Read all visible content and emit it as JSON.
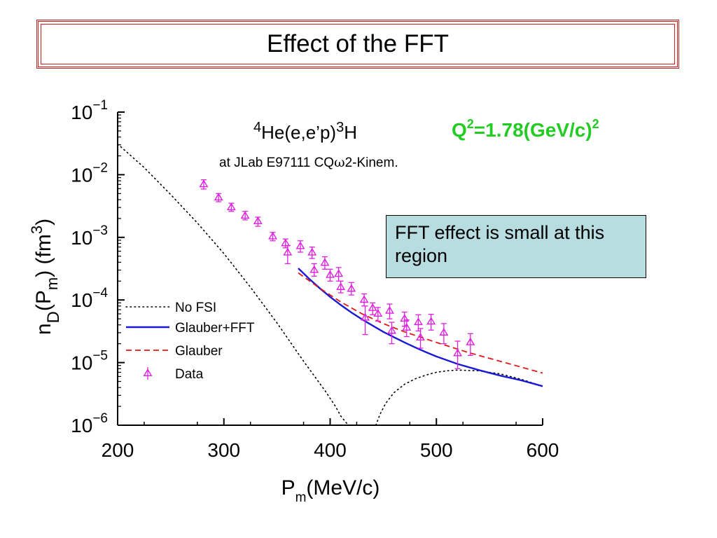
{
  "slide": {
    "title": "Effect of the FFT",
    "callout": "FFT effect is small at this region"
  },
  "chart_data": {
    "type": "scatter",
    "reaction": {
      "base": "He(e,e’p)",
      "pre_super": "4",
      "post_super": "3",
      "post": "H"
    },
    "subtitle_pre": "at JLab E97111 CQ",
    "subtitle_greek": "ω",
    "subtitle_post": "2-Kinem.",
    "q2_label": {
      "prefix": "Q",
      "sup1": "2",
      "middle": "=1.78(GeV/c)",
      "sup2": "2",
      "color": "#22cc22"
    },
    "xlabel": {
      "main": "P",
      "sub": "m",
      "unit": "(MeV/c)"
    },
    "ylabel": {
      "n": "n",
      "sub": "D",
      "open": "(P",
      "sub2": "m",
      "close": ") (fm",
      "sup": "3",
      "end": ")"
    },
    "xlim": [
      200,
      600
    ],
    "ylim": [
      1e-06,
      0.1
    ],
    "yscale": "log",
    "x_ticks": [
      "200",
      "300",
      "400",
      "500",
      "600"
    ],
    "y_ticks": [
      {
        "base": "10",
        "exp": "−6"
      },
      {
        "base": "10",
        "exp": "−5"
      },
      {
        "base": "10",
        "exp": "−4"
      },
      {
        "base": "10",
        "exp": "−3"
      },
      {
        "base": "10",
        "exp": "−2"
      },
      {
        "base": "10",
        "exp": "−1"
      }
    ],
    "legend": {
      "placement": "lower-left",
      "entries": [
        "No FSI",
        "Glauber+FFT",
        "Glauber",
        "Data"
      ]
    },
    "colors": {
      "no_fsi": "#000000",
      "glauber_fft": "#1a1ad6",
      "glauber": "#e01818",
      "data": "#e020e0"
    },
    "series": [
      {
        "name": "No FSI",
        "style": "dotted",
        "x": [
          200,
          225,
          250,
          275,
          300,
          325,
          350,
          375,
          395,
          405,
          410,
          415,
          418
        ],
        "y": [
          0.031,
          0.013,
          0.0048,
          0.0017,
          0.00055,
          0.00016,
          4.3e-05,
          1.05e-05,
          3.6e-06,
          2e-06,
          1.4e-06,
          1.1e-06,
          1e-06
        ]
      },
      {
        "name": "No FSI",
        "style": "dotted",
        "x": [
          443,
          447,
          452,
          460,
          470,
          480,
          490,
          500,
          510,
          520,
          540,
          560,
          580,
          600
        ],
        "y": [
          1e-06,
          1.5e-06,
          2.2e-06,
          3.3e-06,
          4.5e-06,
          5.5e-06,
          6.3e-06,
          7e-06,
          7.4e-06,
          7.6e-06,
          7.4e-06,
          6.6e-06,
          5.4e-06,
          4.2e-06
        ]
      },
      {
        "name": "Glauber+FFT",
        "style": "solid",
        "x": [
          370,
          380,
          390,
          400,
          410,
          420,
          430,
          440,
          450,
          460,
          470,
          480,
          490,
          500,
          520,
          540,
          560,
          580,
          600
        ],
        "y": [
          0.00032,
          0.00022,
          0.000155,
          0.000112,
          8.3e-05,
          6.3e-05,
          4.9e-05,
          3.9e-05,
          3.1e-05,
          2.55e-05,
          2.1e-05,
          1.75e-05,
          1.47e-05,
          1.25e-05,
          9.5e-06,
          7.6e-06,
          6.2e-06,
          5.2e-06,
          4.2e-06
        ]
      },
      {
        "name": "Glauber",
        "style": "dashed",
        "x": [
          370,
          390,
          410,
          430,
          450,
          470,
          500,
          530,
          560,
          600
        ],
        "y": [
          0.00027,
          0.000155,
          9.3e-05,
          6e-05,
          4.2e-05,
          3.1e-05,
          2.1e-05,
          1.45e-05,
          1.05e-05,
          6.8e-06
        ]
      },
      {
        "name": "Data",
        "style": "markers",
        "x": [
          281,
          295,
          307,
          320,
          332,
          346,
          358,
          360,
          372,
          383,
          385,
          395,
          400,
          408,
          410,
          420,
          432,
          433,
          440,
          445,
          456,
          458,
          470,
          472,
          483,
          485,
          495,
          507,
          520,
          532
        ],
        "y": [
          0.007,
          0.0043,
          0.003,
          0.0022,
          0.0018,
          0.00103,
          0.0008,
          0.00057,
          0.00072,
          0.00057,
          0.0003,
          0.00039,
          0.00025,
          0.00026,
          0.00016,
          0.00015,
          0.0001,
          5.2e-05,
          7.4e-05,
          6e-05,
          6.7e-05,
          3.2e-05,
          5e-05,
          3.6e-05,
          4.4e-05,
          2.5e-05,
          4.5e-05,
          3e-05,
          1.4e-05,
          2.1e-05
        ],
        "err_low": [
          0.0059,
          0.0037,
          0.0026,
          0.0019,
          0.0015,
          0.00088,
          0.00068,
          0.00038,
          0.00058,
          0.00046,
          0.00024,
          0.00031,
          0.0002,
          0.0002,
          0.00013,
          0.00012,
          8e-05,
          2.8e-05,
          5.8e-05,
          4.6e-05,
          5e-05,
          2e-05,
          3.8e-05,
          2.6e-05,
          3.2e-05,
          1.7e-05,
          3.3e-05,
          2e-05,
          8e-06,
          1.3e-05
        ],
        "err_high": [
          0.0083,
          0.005,
          0.0035,
          0.0026,
          0.0021,
          0.0012,
          0.00094,
          0.00074,
          0.00088,
          0.0007,
          0.00038,
          0.00049,
          0.00031,
          0.00033,
          0.0002,
          0.00019,
          0.000125,
          8e-05,
          9e-05,
          7.6e-05,
          8.6e-05,
          4.4e-05,
          6.4e-05,
          4.8e-05,
          5.8e-05,
          3.5e-05,
          5.9e-05,
          4.2e-05,
          2.2e-05,
          2.9e-05
        ]
      }
    ]
  }
}
